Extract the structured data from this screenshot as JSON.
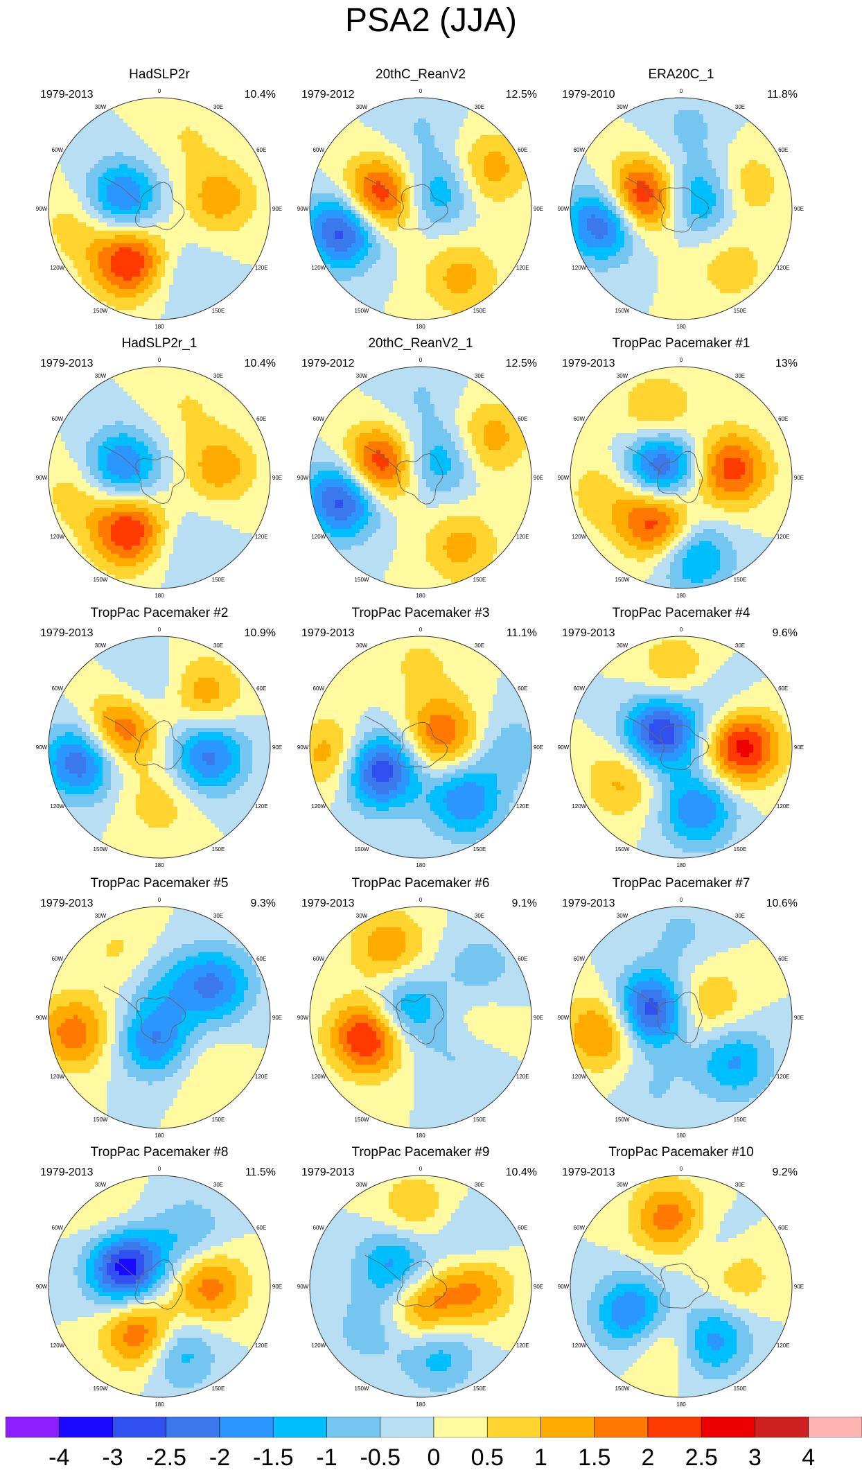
{
  "title": "PSA2 (JJA)",
  "colors": [
    "#8c1eff",
    "#1a0aff",
    "#3050f0",
    "#3a78ec",
    "#2b96ff",
    "#00bfff",
    "#74c6f0",
    "#b7def3",
    "#fff9a0",
    "#ffd42e",
    "#ffab00",
    "#ff7800",
    "#ff3a00",
    "#ee0000",
    "#cf2020",
    "#ffb4b4"
  ],
  "chart_data": {
    "type": "heatmap",
    "projection": "south polar stereographic",
    "colorbar": {
      "tick_labels": [
        "-4",
        "-3",
        "-2.5",
        "-2",
        "-1.5",
        "-1",
        "-0.5",
        "0",
        "0.5",
        "1",
        "1.5",
        "2",
        "2.5",
        "3",
        "4"
      ],
      "levels": [
        -4,
        -3,
        -2.5,
        -2,
        -1.5,
        -1,
        -0.5,
        0,
        0.5,
        1,
        1.5,
        2,
        2.5,
        3,
        4
      ]
    },
    "lon_labels": [
      "0",
      "30E",
      "60E",
      "90E",
      "120E",
      "150E",
      "180",
      "150W",
      "120W",
      "90W",
      "60W",
      "30W"
    ],
    "panels": [
      {
        "name": "HadSLP2r",
        "years": "1979-2013",
        "pct": "10.4%",
        "blobs": [
          {
            "lon": -150,
            "r": 0.55,
            "v": 2.6
          },
          {
            "lon": -75,
            "r": 0.35,
            "v": -2.2
          },
          {
            "lon": 80,
            "r": 0.55,
            "v": 1.3
          },
          {
            "lon": 160,
            "r": 0.65,
            "v": -0.6
          },
          {
            "lon": 20,
            "r": 0.7,
            "v": 0.5
          },
          {
            "lon": -100,
            "r": 0.75,
            "v": 0.8
          }
        ]
      },
      {
        "name": "20thC_ReanV2",
        "years": "1979-2012",
        "pct": "12.5%",
        "blobs": [
          {
            "lon": -105,
            "r": 0.72,
            "v": -3.0
          },
          {
            "lon": -75,
            "r": 0.4,
            "v": 2.8
          },
          {
            "lon": 60,
            "r": 0.72,
            "v": 1.3
          },
          {
            "lon": 150,
            "r": 0.72,
            "v": 1.2
          },
          {
            "lon": 45,
            "r": 0.22,
            "v": -1.5
          },
          {
            "lon": 0,
            "r": 0.75,
            "v": -0.5
          }
        ]
      },
      {
        "name": "ERA20C_1",
        "years": "1979-2010",
        "pct": "11.8%",
        "blobs": [
          {
            "lon": -100,
            "r": 0.7,
            "v": -2.8
          },
          {
            "lon": -75,
            "r": 0.38,
            "v": 3.0
          },
          {
            "lon": 70,
            "r": 0.6,
            "v": 1.0
          },
          {
            "lon": 140,
            "r": 0.7,
            "v": 0.8
          },
          {
            "lon": 60,
            "r": 0.2,
            "v": -1.8
          },
          {
            "lon": 5,
            "r": 0.75,
            "v": -0.6
          }
        ]
      },
      {
        "name": "HadSLP2r_1",
        "years": "1979-2013",
        "pct": "10.4%",
        "blobs": [
          {
            "lon": -150,
            "r": 0.55,
            "v": 2.6
          },
          {
            "lon": -75,
            "r": 0.35,
            "v": -2.2
          },
          {
            "lon": 80,
            "r": 0.55,
            "v": 1.3
          },
          {
            "lon": 160,
            "r": 0.65,
            "v": -0.6
          },
          {
            "lon": 20,
            "r": 0.7,
            "v": 0.5
          },
          {
            "lon": -100,
            "r": 0.75,
            "v": 0.8
          }
        ]
      },
      {
        "name": "20thC_ReanV2_1",
        "years": "1979-2012",
        "pct": "12.5%",
        "blobs": [
          {
            "lon": -105,
            "r": 0.72,
            "v": -3.0
          },
          {
            "lon": -75,
            "r": 0.4,
            "v": 2.8
          },
          {
            "lon": 60,
            "r": 0.72,
            "v": 1.3
          },
          {
            "lon": 150,
            "r": 0.72,
            "v": 1.2
          },
          {
            "lon": 45,
            "r": 0.22,
            "v": -1.5
          },
          {
            "lon": 0,
            "r": 0.75,
            "v": -0.5
          }
        ]
      },
      {
        "name": "TropPac Pacemaker #1",
        "years": "1979-2013",
        "pct": "13%",
        "blobs": [
          {
            "lon": -60,
            "r": 0.2,
            "v": -2.8
          },
          {
            "lon": -150,
            "r": 0.45,
            "v": 2.5
          },
          {
            "lon": 80,
            "r": 0.45,
            "v": 2.3
          },
          {
            "lon": 170,
            "r": 0.72,
            "v": -1.7
          },
          {
            "lon": -20,
            "r": 0.62,
            "v": 1.2
          },
          {
            "lon": -100,
            "r": 0.72,
            "v": 0.8
          }
        ]
      },
      {
        "name": "TropPac Pacemaker #2",
        "years": "1979-2013",
        "pct": "10.9%",
        "blobs": [
          {
            "lon": -100,
            "r": 0.72,
            "v": -2.5
          },
          {
            "lon": 100,
            "r": 0.45,
            "v": -2.2
          },
          {
            "lon": -65,
            "r": 0.38,
            "v": 2.2
          },
          {
            "lon": 40,
            "r": 0.62,
            "v": 1.4
          },
          {
            "lon": 180,
            "r": 0.5,
            "v": 0.8
          },
          {
            "lon": -10,
            "r": 0.5,
            "v": -0.8
          }
        ]
      },
      {
        "name": "TropPac Pacemaker #3",
        "years": "1979-2013",
        "pct": "11.1%",
        "blobs": [
          {
            "lon": -120,
            "r": 0.42,
            "v": -3.0
          },
          {
            "lon": 140,
            "r": 0.62,
            "v": -2.0
          },
          {
            "lon": -95,
            "r": 0.8,
            "v": 1.4
          },
          {
            "lon": 60,
            "r": 0.22,
            "v": 2.0
          },
          {
            "lon": 90,
            "r": 0.8,
            "v": -0.8
          },
          {
            "lon": 0,
            "r": 0.75,
            "v": 0.6
          }
        ]
      },
      {
        "name": "TropPac Pacemaker #4",
        "years": "1979-2013",
        "pct": "9.6%",
        "blobs": [
          {
            "lon": -55,
            "r": 0.22,
            "v": -3.0
          },
          {
            "lon": 90,
            "r": 0.55,
            "v": 2.8
          },
          {
            "lon": -120,
            "r": 0.6,
            "v": 1.2
          },
          {
            "lon": 165,
            "r": 0.58,
            "v": -2.0
          },
          {
            "lon": -5,
            "r": 0.7,
            "v": 1.0
          },
          {
            "lon": 40,
            "r": 0.5,
            "v": -0.6
          }
        ]
      },
      {
        "name": "TropPac Pacemaker #5",
        "years": "1979-2013",
        "pct": "9.3%",
        "blobs": [
          {
            "lon": 60,
            "r": 0.58,
            "v": -2.0
          },
          {
            "lon": -100,
            "r": 0.78,
            "v": 1.8
          },
          {
            "lon": -170,
            "r": 0.22,
            "v": -2.0
          },
          {
            "lon": 140,
            "r": 0.6,
            "v": 0.5
          },
          {
            "lon": -30,
            "r": 0.7,
            "v": 0.6
          },
          {
            "lon": 10,
            "r": 0.3,
            "v": -0.8
          }
        ]
      },
      {
        "name": "TropPac Pacemaker #6",
        "years": "1979-2013",
        "pct": "9.1%",
        "blobs": [
          {
            "lon": -110,
            "r": 0.5,
            "v": 2.8
          },
          {
            "lon": -25,
            "r": 0.7,
            "v": 1.4
          },
          {
            "lon": -65,
            "r": 0.15,
            "v": -1.8
          },
          {
            "lon": 50,
            "r": 0.7,
            "v": -0.8
          },
          {
            "lon": 135,
            "r": 0.5,
            "v": -0.6
          },
          {
            "lon": 95,
            "r": 0.5,
            "v": 0.5
          }
        ]
      },
      {
        "name": "TropPac Pacemaker #7",
        "years": "1979-2013",
        "pct": "10.6%",
        "blobs": [
          {
            "lon": -75,
            "r": 0.28,
            "v": -3.0
          },
          {
            "lon": -100,
            "r": 0.72,
            "v": 1.8
          },
          {
            "lon": 130,
            "r": 0.62,
            "v": -1.6
          },
          {
            "lon": 60,
            "r": 0.25,
            "v": 1.2
          },
          {
            "lon": 0,
            "r": 0.75,
            "v": -0.6
          },
          {
            "lon": -160,
            "r": 0.7,
            "v": -0.5
          }
        ]
      },
      {
        "name": "TropPac Pacemaker #8",
        "years": "1979-2013",
        "pct": "11.5%",
        "blobs": [
          {
            "lon": -60,
            "r": 0.35,
            "v": -3.5
          },
          {
            "lon": -160,
            "r": 0.45,
            "v": 2.3
          },
          {
            "lon": 90,
            "r": 0.45,
            "v": 1.8
          },
          {
            "lon": 165,
            "r": 0.6,
            "v": -1.6
          },
          {
            "lon": 30,
            "r": 0.55,
            "v": -1.0
          },
          {
            "lon": -40,
            "r": 0.7,
            "v": 0.6
          }
        ]
      },
      {
        "name": "TropPac Pacemaker #9",
        "years": "1979-2013",
        "pct": "10.4%",
        "blobs": [
          {
            "lon": -50,
            "r": 0.3,
            "v": -1.8
          },
          {
            "lon": 170,
            "r": 0.2,
            "v": 1.8
          },
          {
            "lon": 90,
            "r": 0.5,
            "v": 1.6
          },
          {
            "lon": 165,
            "r": 0.62,
            "v": -1.4
          },
          {
            "lon": -5,
            "r": 0.7,
            "v": 1.0
          },
          {
            "lon": 50,
            "r": 0.58,
            "v": -0.8
          },
          {
            "lon": -130,
            "r": 0.6,
            "v": -0.8
          }
        ]
      },
      {
        "name": "TropPac Pacemaker #10",
        "years": "1979-2013",
        "pct": "9.2%",
        "blobs": [
          {
            "lon": -120,
            "r": 0.5,
            "v": -2.3
          },
          {
            "lon": -10,
            "r": 0.62,
            "v": 1.8
          },
          {
            "lon": 150,
            "r": 0.55,
            "v": -1.8
          },
          {
            "lon": -160,
            "r": 0.5,
            "v": 1.2
          },
          {
            "lon": 80,
            "r": 0.5,
            "v": 1.0
          },
          {
            "lon": 40,
            "r": 0.45,
            "v": -0.6
          }
        ]
      }
    ]
  }
}
